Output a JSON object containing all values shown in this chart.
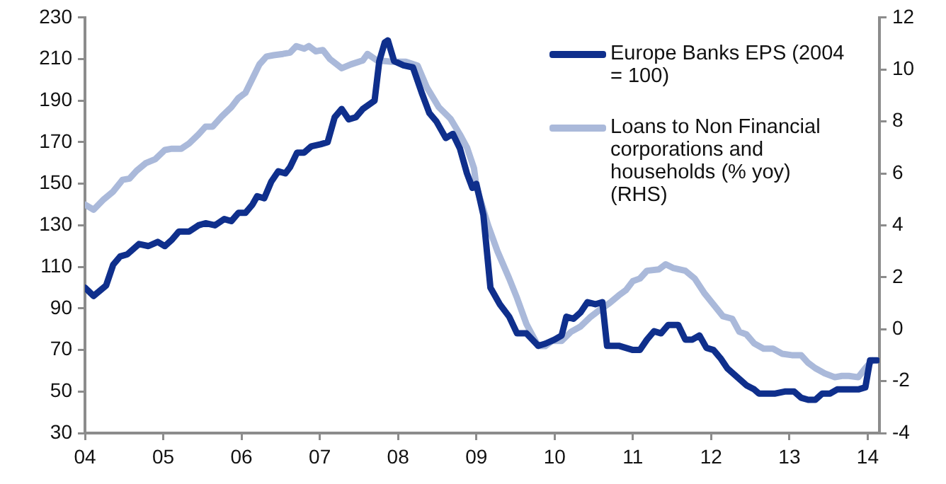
{
  "chart_data": {
    "type": "line",
    "xlim": [
      2004,
      2014.15
    ],
    "xticks": [
      {
        "value": 2004,
        "label": "04"
      },
      {
        "value": 2005,
        "label": "05"
      },
      {
        "value": 2006,
        "label": "06"
      },
      {
        "value": 2007,
        "label": "07"
      },
      {
        "value": 2008,
        "label": "08"
      },
      {
        "value": 2009,
        "label": "09"
      },
      {
        "value": 2010,
        "label": "10"
      },
      {
        "value": 2011,
        "label": "11"
      },
      {
        "value": 2012,
        "label": "12"
      },
      {
        "value": 2013,
        "label": "13"
      },
      {
        "value": 2014,
        "label": "14"
      }
    ],
    "ylim": [
      30,
      230
    ],
    "yticks": [
      30,
      50,
      70,
      90,
      110,
      130,
      150,
      170,
      190,
      210,
      230
    ],
    "y2lim": [
      -4,
      12
    ],
    "y2ticks": [
      -4,
      -2,
      0,
      2,
      4,
      6,
      8,
      10,
      12
    ],
    "grid": false,
    "legend": "top right",
    "marker": "none",
    "line_style": "solid",
    "series": [
      {
        "name": "Europe Banks EPS (2004 = 100)",
        "color": "#0f2f8c",
        "x": [
          2004.0,
          2004.11,
          2004.27,
          2004.36,
          2004.45,
          2004.54,
          2004.69,
          2004.81,
          2004.93,
          2005.02,
          2005.11,
          2005.2,
          2005.33,
          2005.45,
          2005.54,
          2005.66,
          2005.78,
          2005.87,
          2005.96,
          2006.05,
          2006.14,
          2006.2,
          2006.29,
          2006.38,
          2006.47,
          2006.56,
          2006.62,
          2006.71,
          2006.8,
          2006.89,
          2007.01,
          2007.1,
          2007.19,
          2007.28,
          2007.37,
          2007.46,
          2007.55,
          2007.7,
          2007.76,
          2007.83,
          2007.87,
          2007.95,
          2008.07,
          2008.19,
          2008.31,
          2008.4,
          2008.49,
          2008.61,
          2008.7,
          2008.79,
          2008.88,
          2008.95,
          2009.0,
          2009.09,
          2009.18,
          2009.3,
          2009.42,
          2009.52,
          2009.64,
          2009.79,
          2009.88,
          2010.0,
          2010.09,
          2010.15,
          2010.24,
          2010.33,
          2010.42,
          2010.52,
          2010.61,
          2010.67,
          2010.82,
          2010.91,
          2011.0,
          2011.09,
          2011.18,
          2011.27,
          2011.36,
          2011.45,
          2011.58,
          2011.67,
          2011.76,
          2011.85,
          2011.94,
          2012.03,
          2012.12,
          2012.21,
          2012.33,
          2012.45,
          2012.55,
          2012.61,
          2012.73,
          2012.82,
          2012.94,
          2013.06,
          2013.15,
          2013.24,
          2013.33,
          2013.42,
          2013.52,
          2013.61,
          2013.73,
          2013.82,
          2013.88,
          2013.97,
          2014.03,
          2014.12
        ],
        "values": [
          100,
          96,
          101,
          111,
          115,
          116,
          121,
          120,
          122,
          120,
          123,
          127,
          127,
          130,
          131,
          130,
          133,
          132,
          136,
          136,
          140,
          144,
          143,
          151,
          156,
          155,
          158,
          165,
          165,
          168,
          169,
          170,
          182,
          186,
          181,
          182,
          186,
          190,
          209,
          218,
          219,
          209,
          207,
          206,
          193,
          184,
          180,
          172,
          174,
          167,
          155,
          148,
          150,
          135,
          100,
          92,
          86,
          78,
          78,
          72,
          73,
          75,
          77,
          86,
          85,
          88,
          93,
          92,
          93,
          72,
          72,
          71,
          70,
          70,
          75,
          79,
          78,
          82,
          82,
          75,
          75,
          77,
          71,
          70,
          66,
          61,
          57,
          53,
          51,
          49,
          49,
          49,
          50,
          50,
          47,
          46,
          46,
          49,
          49,
          51,
          51,
          51,
          51,
          52,
          65,
          65
        ]
      },
      {
        "name": "Loans to Non Financial corporations and households (% yoy) (RHS)",
        "color": "#aab9da",
        "axis": "y2",
        "x": [
          2004.0,
          2004.11,
          2004.24,
          2004.36,
          2004.48,
          2004.57,
          2004.66,
          2004.78,
          2004.9,
          2005.02,
          2005.11,
          2005.23,
          2005.33,
          2005.45,
          2005.54,
          2005.63,
          2005.75,
          2005.87,
          2005.96,
          2006.05,
          2006.14,
          2006.23,
          2006.32,
          2006.41,
          2006.53,
          2006.62,
          2006.7,
          2006.8,
          2006.86,
          2006.95,
          2007.04,
          2007.13,
          2007.28,
          2007.4,
          2007.55,
          2007.61,
          2007.73,
          2007.92,
          2008.1,
          2008.25,
          2008.37,
          2008.52,
          2008.67,
          2008.79,
          2008.88,
          2008.97,
          2009.0,
          2009.15,
          2009.27,
          2009.42,
          2009.52,
          2009.64,
          2009.79,
          2009.88,
          2009.97,
          2010.09,
          2010.21,
          2010.33,
          2010.45,
          2010.58,
          2010.7,
          2010.82,
          2010.91,
          2011.0,
          2011.09,
          2011.18,
          2011.33,
          2011.42,
          2011.52,
          2011.67,
          2011.79,
          2011.91,
          2012.03,
          2012.15,
          2012.27,
          2012.36,
          2012.45,
          2012.55,
          2012.67,
          2012.79,
          2012.91,
          2013.03,
          2013.15,
          2013.24,
          2013.33,
          2013.45,
          2013.58,
          2013.67,
          2013.76,
          2013.88,
          2013.97,
          2014.06
        ],
        "values": [
          4.8,
          4.6,
          5.0,
          5.3,
          5.75,
          5.8,
          6.1,
          6.4,
          6.55,
          6.9,
          6.95,
          6.95,
          7.15,
          7.5,
          7.8,
          7.8,
          8.2,
          8.55,
          8.9,
          9.1,
          9.65,
          10.2,
          10.5,
          10.55,
          10.6,
          10.65,
          10.9,
          10.8,
          10.9,
          10.7,
          10.75,
          10.4,
          10.05,
          10.2,
          10.35,
          10.6,
          10.35,
          10.3,
          10.3,
          10.15,
          9.3,
          8.55,
          8.1,
          7.5,
          7.0,
          6.2,
          5.5,
          4.0,
          3.0,
          1.95,
          1.2,
          0.2,
          -0.65,
          -0.65,
          -0.45,
          -0.45,
          -0.1,
          0.1,
          0.45,
          0.75,
          1.0,
          1.3,
          1.5,
          1.85,
          1.95,
          2.25,
          2.3,
          2.5,
          2.35,
          2.25,
          1.95,
          1.4,
          0.95,
          0.5,
          0.4,
          -0.1,
          -0.2,
          -0.55,
          -0.75,
          -0.75,
          -0.95,
          -1.0,
          -1.0,
          -1.3,
          -1.5,
          -1.7,
          -1.85,
          -1.8,
          -1.8,
          -1.85,
          -1.5,
          -1.2
        ]
      }
    ]
  }
}
